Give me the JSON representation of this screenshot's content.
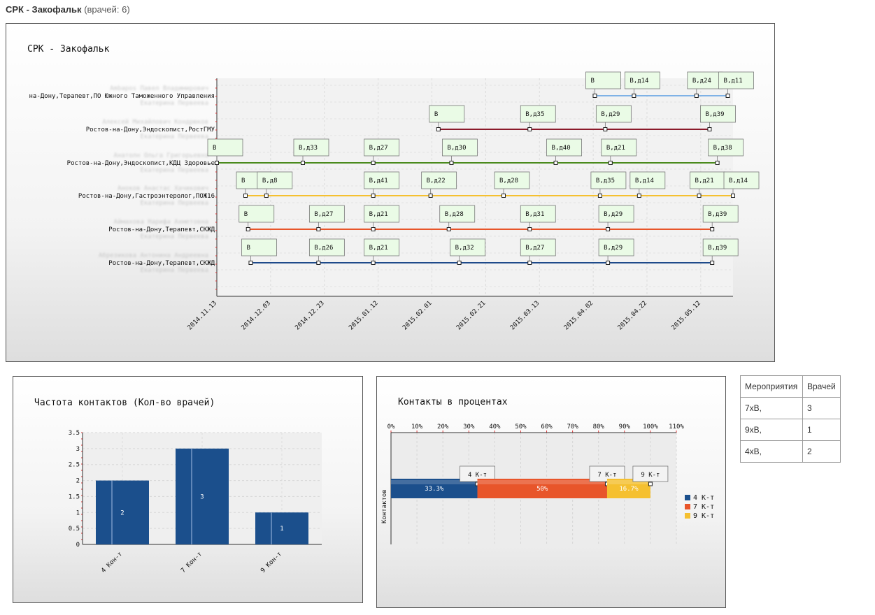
{
  "header": {
    "title": "СРК - Закофальк",
    "count_label": "(врачей: 6)"
  },
  "colors": {
    "series1": "#7fb2e6",
    "series2": "#8b1a2b",
    "series3": "#4a8a1c",
    "series4": "#f5c030",
    "series5": "#e8552a",
    "series6": "#1e4a8a",
    "bar": "#1b4f8c",
    "pie_4": "#1b4f8c",
    "pie_7": "#e8552a",
    "pie_9": "#f5c030"
  },
  "chart_data": [
    {
      "type": "timeline",
      "title": "СРК - Закофальк",
      "x_ticks": [
        "2014.11.13",
        "2014.12.03",
        "2014.12.23",
        "2015.01.12",
        "2015.02.01",
        "2015.02.21",
        "2015.03.13",
        "2015.04.02",
        "2015.04.22",
        "2015.05.12"
      ],
      "x_range_days": [
        0,
        198
      ],
      "rows": [
        {
          "name": "Ambapos Павел Владимирович",
          "label": "на-Дону,Терапевт,ПО Южного Таможенного Управления",
          "sub": "Екатерина Первеева",
          "points": [
            {
              "day": 145,
              "text": "В"
            },
            {
              "day": 160,
              "text": "В,д14"
            },
            {
              "day": 184,
              "text": "В,д24"
            },
            {
              "day": 196,
              "text": "В,д11"
            }
          ]
        },
        {
          "name": "Алексей Михайлович Кондрюков",
          "label": "Ростов-на-Дону,Эндоскопист,РостГМУ",
          "sub": "Екатерина Первеева",
          "points": [
            {
              "day": 85,
              "text": "В"
            },
            {
              "day": 120,
              "text": "В,д35"
            },
            {
              "day": 149,
              "text": "В,д29"
            },
            {
              "day": 189,
              "text": "В,д39"
            }
          ]
        },
        {
          "name": "Анатолн Ольга Григорьевна",
          "label": "Ростов-на-Дону,Эндоскопист,КДЦ Здоровье",
          "sub": "Екатерина Первеева",
          "points": [
            {
              "day": 0,
              "text": "В"
            },
            {
              "day": 33,
              "text": "В,д33"
            },
            {
              "day": 60,
              "text": "В,д27"
            },
            {
              "day": 90,
              "text": "В,д30"
            },
            {
              "day": 130,
              "text": "В,д40"
            },
            {
              "day": 151,
              "text": "В,д21"
            },
            {
              "day": 192,
              "text": "В,д38"
            }
          ]
        },
        {
          "name": "Аноков Анастас Хачикович",
          "label": "Ростов-на-Дону,Гастроэнтеролог,ПОЖ16",
          "sub": "Екатерина Первеева",
          "points": [
            {
              "day": 11,
              "text": "В"
            },
            {
              "day": 19,
              "text": "В,д8"
            },
            {
              "day": 60,
              "text": "В,д41"
            },
            {
              "day": 82,
              "text": "В,д22"
            },
            {
              "day": 110,
              "text": "В,д28"
            },
            {
              "day": 147,
              "text": "В,д35"
            },
            {
              "day": 162,
              "text": "В,д14"
            },
            {
              "day": 185,
              "text": "В,д21"
            },
            {
              "day": 198,
              "text": "В,д14"
            }
          ]
        },
        {
          "name": "Аймахова Нарифа Ахметовна",
          "label": "Ростов-на-Дону,Терапевт,СКЖД",
          "sub": "Екатерина Первеева",
          "points": [
            {
              "day": 12,
              "text": "В"
            },
            {
              "day": 39,
              "text": "В,д27"
            },
            {
              "day": 60,
              "text": "В,д21"
            },
            {
              "day": 89,
              "text": "В,д28"
            },
            {
              "day": 120,
              "text": "В,д31"
            },
            {
              "day": 150,
              "text": "В,д29"
            },
            {
              "day": 190,
              "text": "В,д39"
            }
          ]
        },
        {
          "name": "Абрезикова Антонина Андреевна",
          "label": "Ростов-на-Дону,Терапевт,СКЖД",
          "sub": "Екатерина Первеева",
          "points": [
            {
              "day": 13,
              "text": "В"
            },
            {
              "day": 39,
              "text": "В,д26"
            },
            {
              "day": 60,
              "text": "В,д21"
            },
            {
              "day": 93,
              "text": "В,д32"
            },
            {
              "day": 120,
              "text": "В,д27"
            },
            {
              "day": 150,
              "text": "В,д29"
            },
            {
              "day": 190,
              "text": "В,д39"
            }
          ]
        }
      ]
    },
    {
      "type": "bar",
      "title": "Частота контактов (Кол-во врачей)",
      "categories": [
        "4 Кон-т",
        "7 Кон-т",
        "9 Кон-т"
      ],
      "values": [
        2,
        3,
        1
      ],
      "ylim": [
        0,
        3.5
      ],
      "y_ticks": [
        "0",
        "0.5",
        "1",
        "1.5",
        "2",
        "2.5",
        "3",
        "3.5"
      ]
    },
    {
      "type": "bar",
      "orientation": "horizontal-stacked",
      "title": "Контакты в процентах",
      "ylabel": "Контактов",
      "x_ticks": [
        "0%",
        "10%",
        "20%",
        "30%",
        "40%",
        "50%",
        "60%",
        "70%",
        "80%",
        "90%",
        "100%",
        "110%"
      ],
      "xlim": [
        0,
        110
      ],
      "series": [
        {
          "name": "4 К-т",
          "value": 33.3,
          "label": "33.3%",
          "callout": "4 К-т"
        },
        {
          "name": "7 К-т",
          "value": 50,
          "label": "50%",
          "callout": "7 К-т"
        },
        {
          "name": "9 К-т",
          "value": 16.7,
          "label": "16.7%",
          "callout": "9 К-т"
        }
      ]
    }
  ],
  "events_table": {
    "headers": [
      "Мероприятия",
      "Врачей"
    ],
    "rows": [
      [
        "7хВ,",
        "3"
      ],
      [
        "9хВ,",
        "1"
      ],
      [
        "4хВ,",
        "2"
      ]
    ]
  }
}
